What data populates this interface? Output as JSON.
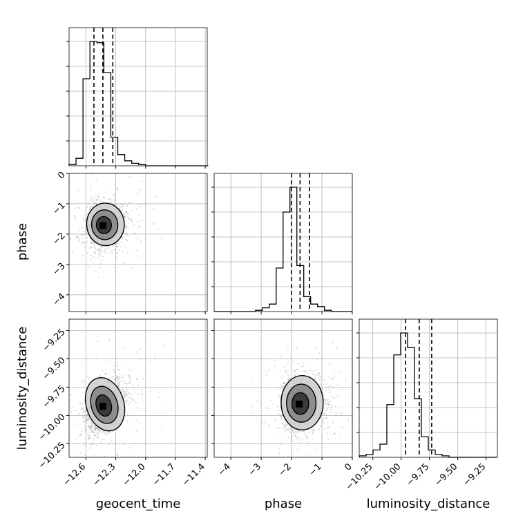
{
  "chart_data": {
    "type": "corner",
    "parameters": [
      "geocent_time",
      "phase",
      "luminosity_distance"
    ],
    "axes": {
      "geocent_time": {
        "label": "geocent_time",
        "range": [
          -12.77,
          -11.38
        ],
        "ticks": [
          -12.6,
          -12.3,
          -12.0,
          -11.7,
          -11.4
        ],
        "tick_labels": [
          "−12.6",
          "−12.3",
          "−12.0",
          "−11.7",
          "−11.4"
        ]
      },
      "phase": {
        "label": "phase",
        "range": [
          -4.55,
          0.0
        ],
        "ticks": [
          -4,
          -3,
          -2,
          -1,
          0
        ],
        "tick_labels": [
          "−4",
          "−3",
          "−2",
          "−1",
          "0"
        ]
      },
      "luminosity_distance": {
        "label": "luminosity_distance",
        "range": [
          -10.37,
          -9.15
        ],
        "ticks": [
          -10.25,
          -10.0,
          -9.75,
          -9.5,
          -9.25
        ],
        "tick_labels": [
          "−10.25",
          "−10.00",
          "−9.75",
          "−9.50",
          "−9.25"
        ]
      }
    },
    "histograms": {
      "geocent_time": {
        "edges_start": -12.77,
        "bin_width": 0.07,
        "counts": [
          1,
          6,
          70,
          100,
          99,
          75,
          23,
          9,
          4,
          2,
          1,
          0,
          0,
          0,
          0,
          0,
          0,
          0,
          0,
          0
        ],
        "quantiles": [
          -12.52,
          -12.43,
          -12.33
        ]
      },
      "phase": {
        "edges_start": -4.55,
        "bin_width": 0.227,
        "counts": [
          0,
          0,
          0,
          0,
          0,
          0,
          1,
          3,
          6,
          35,
          80,
          100,
          37,
          12,
          6,
          4,
          1,
          0,
          0,
          0
        ],
        "quantiles": [
          -2.0,
          -1.72,
          -1.41
        ]
      },
      "luminosity_distance": {
        "edges_start": -10.37,
        "bin_width": 0.061,
        "counts": [
          1,
          2,
          5,
          9,
          36,
          70,
          85,
          75,
          40,
          14,
          5,
          2,
          1,
          0,
          0,
          0,
          0,
          0,
          0,
          0
        ],
        "quantiles": [
          -9.96,
          -9.84,
          -9.73
        ]
      }
    },
    "scatter_2d": [
      {
        "x": "geocent_time",
        "y": "phase",
        "mean": [
          -12.43,
          -1.72
        ],
        "std": [
          0.09,
          0.35
        ],
        "corr": 0.1
      },
      {
        "x": "geocent_time",
        "y": "luminosity_distance",
        "mean": [
          -12.43,
          -9.92
        ],
        "std": [
          0.09,
          0.12
        ],
        "corr": 0.45
      },
      {
        "x": "phase",
        "y": "luminosity_distance",
        "mean": [
          -1.75,
          -9.9
        ],
        "std": [
          0.33,
          0.12
        ],
        "corr": 0.0
      }
    ],
    "grid": true,
    "colors": {
      "line": "#000000",
      "points": "#9a9a9a",
      "fill_light": "#cfcfcf",
      "fill_mid": "#8a8a8a",
      "fill_dark": "#3a3a3a"
    }
  }
}
